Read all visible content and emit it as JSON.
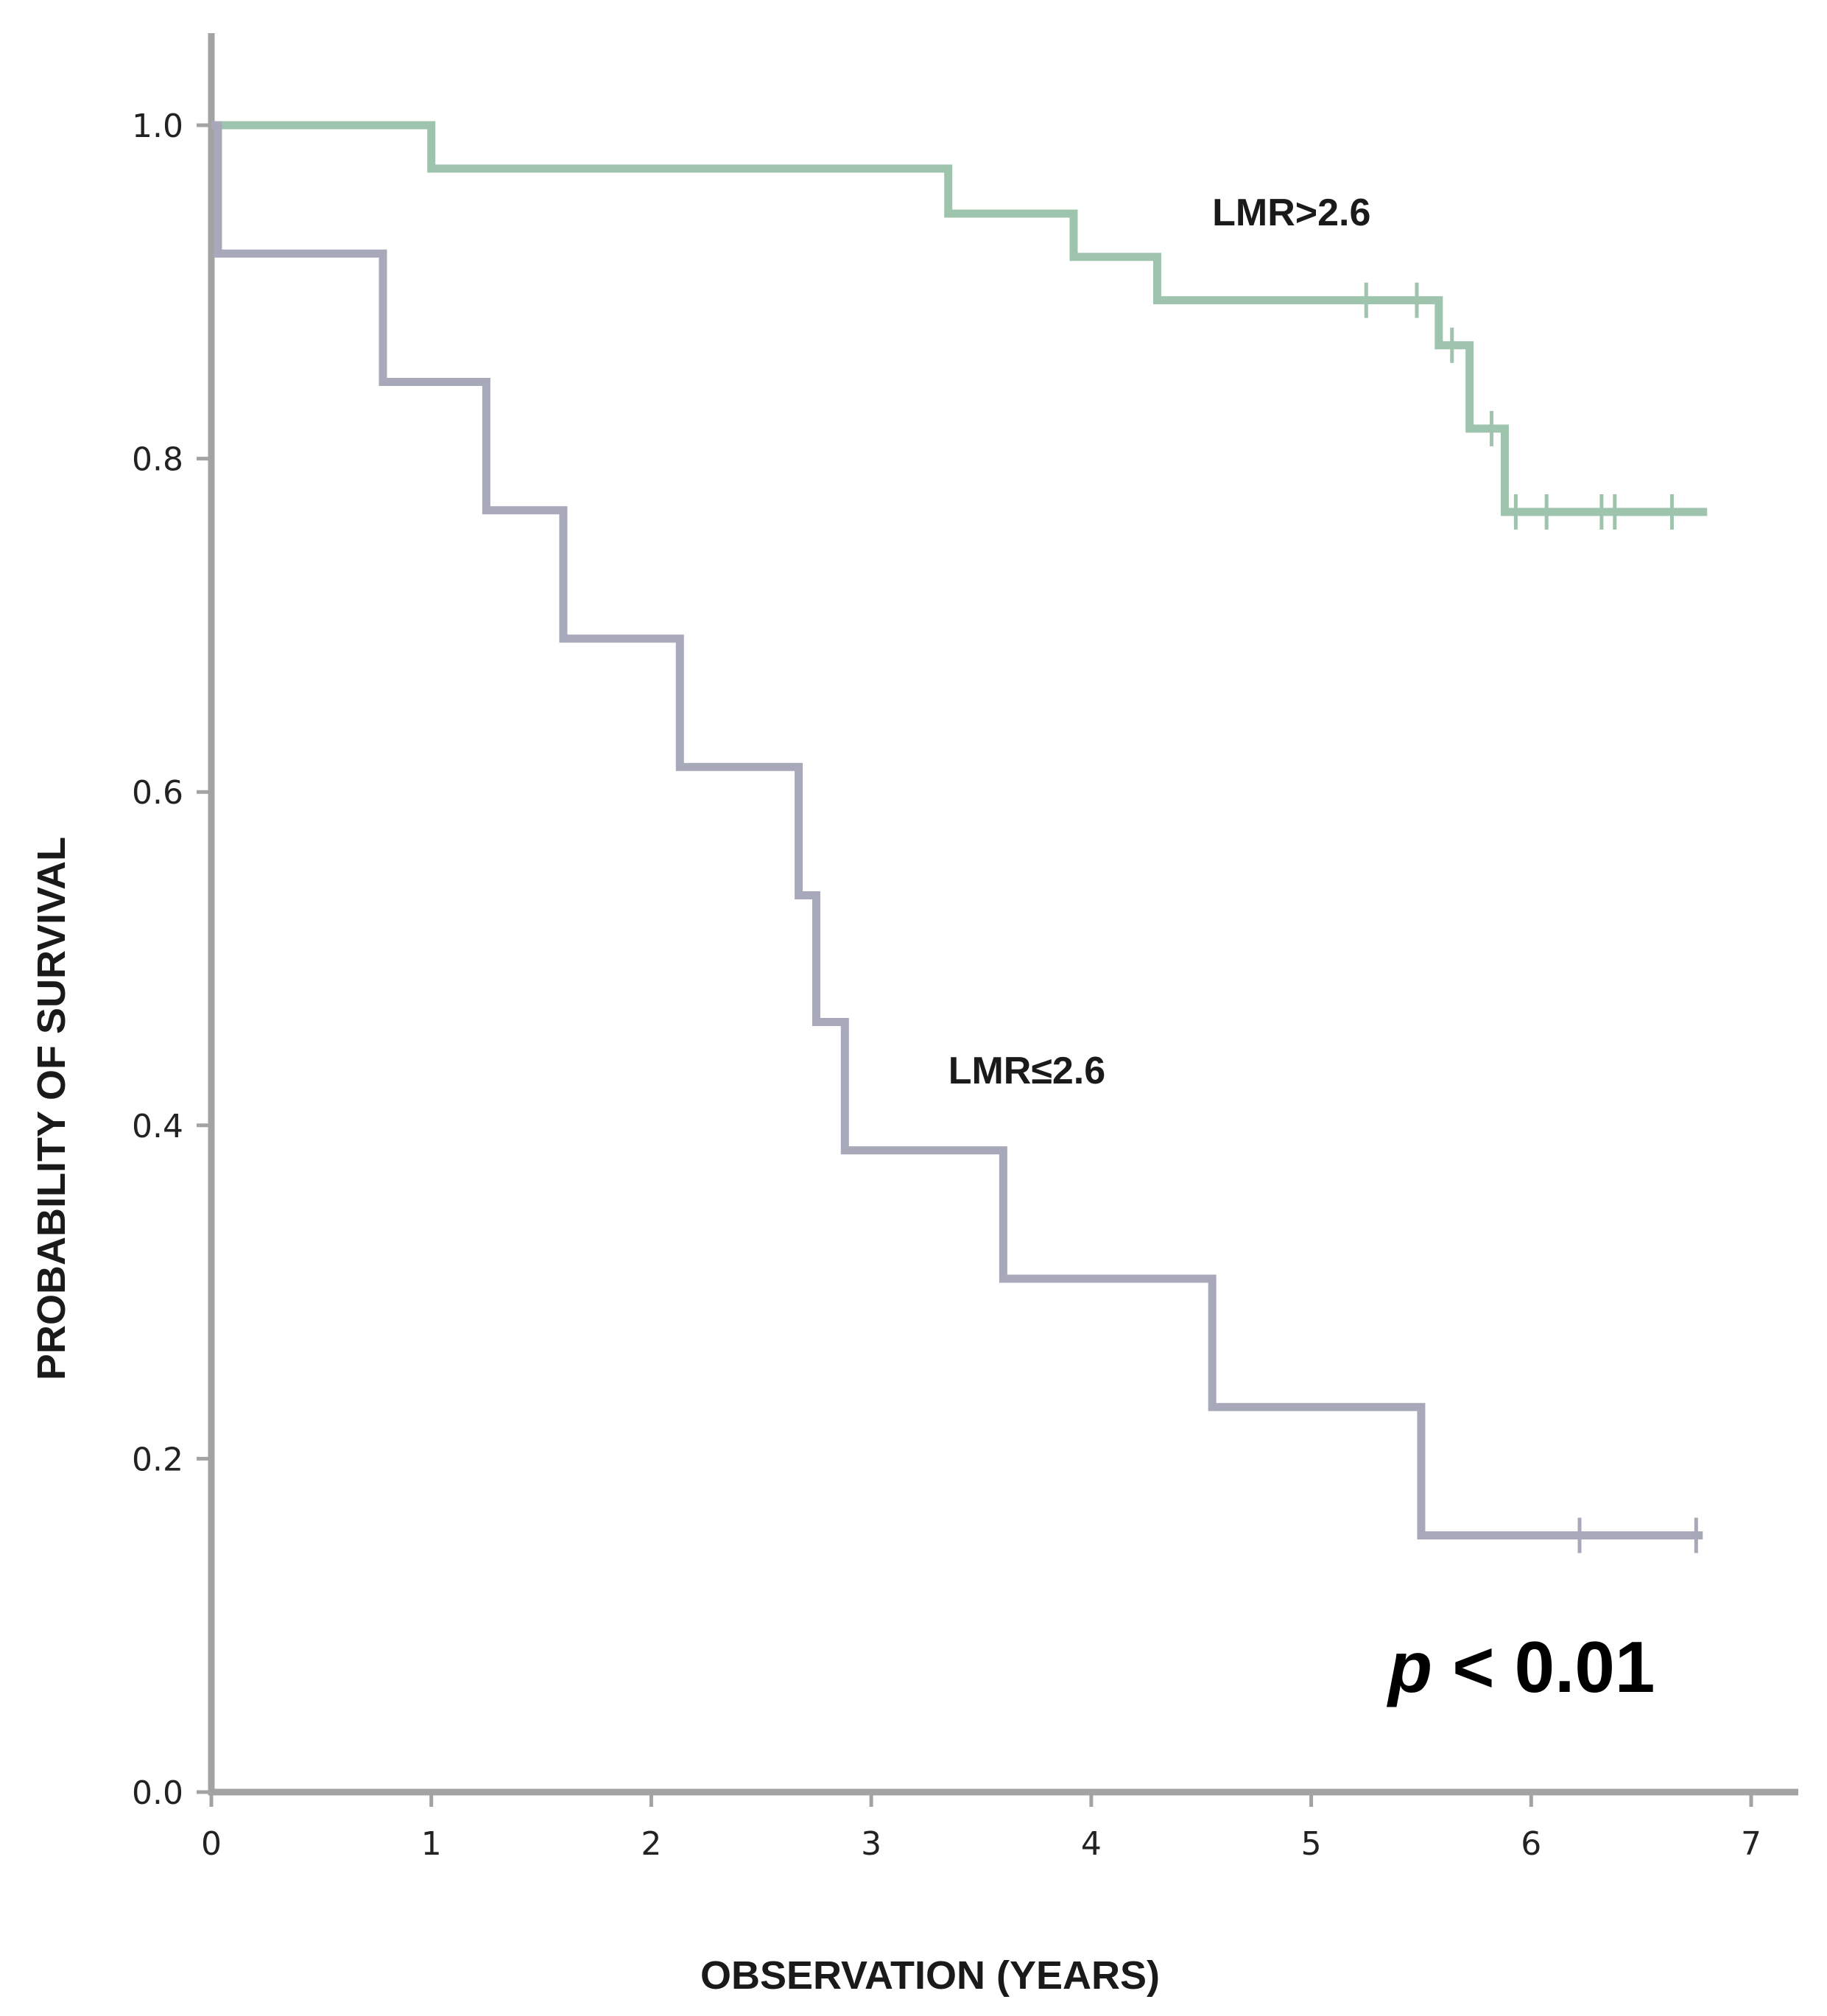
{
  "chart_data": {
    "type": "line",
    "subtype": "kaplan-meier-step",
    "xlabel": "OBSERVATION (YEARS)",
    "ylabel": "PROBABILITY OF SURVIVAL",
    "xlim": [
      0,
      7
    ],
    "ylim": [
      0,
      1
    ],
    "x_ticks": [
      "0",
      "1",
      "2",
      "3",
      "4",
      "5",
      "6",
      "7"
    ],
    "y_ticks": [
      "0.0",
      "0.2",
      "0.4",
      "0.6",
      "0.8",
      "1.0"
    ],
    "grid": false,
    "series": [
      {
        "name": "LMR>2.6",
        "color": "#9fc4ad",
        "steps": [
          [
            0,
            1.0
          ],
          [
            1.0,
            0.974
          ],
          [
            3.35,
            0.947
          ],
          [
            3.92,
            0.921
          ],
          [
            4.3,
            0.895
          ],
          [
            5.58,
            0.868
          ],
          [
            5.72,
            0.818
          ],
          [
            5.88,
            0.768
          ]
        ],
        "end_x": 6.8,
        "censored": [
          [
            5.25,
            0.895
          ],
          [
            5.48,
            0.895
          ],
          [
            5.64,
            0.868
          ],
          [
            5.82,
            0.818
          ],
          [
            5.93,
            0.768
          ],
          [
            6.07,
            0.768
          ],
          [
            6.32,
            0.768
          ],
          [
            6.38,
            0.768
          ],
          [
            6.64,
            0.768
          ]
        ]
      },
      {
        "name": "LMR≤2.6",
        "color": "#a7a8ba",
        "steps": [
          [
            0,
            1.0
          ],
          [
            0.03,
            0.923
          ],
          [
            0.78,
            0.846
          ],
          [
            1.25,
            0.769
          ],
          [
            1.6,
            0.692
          ],
          [
            2.13,
            0.615
          ],
          [
            2.67,
            0.538
          ],
          [
            2.75,
            0.462
          ],
          [
            2.88,
            0.385
          ],
          [
            3.6,
            0.308
          ],
          [
            4.55,
            0.231
          ],
          [
            5.5,
            0.154
          ]
        ],
        "end_x": 6.78,
        "censored": [
          [
            6.22,
            0.154
          ],
          [
            6.75,
            0.154
          ]
        ]
      }
    ],
    "annotations": [
      {
        "text_italic": "p",
        "text": " < 0.01",
        "x": 5.35,
        "y": 0.06
      }
    ]
  }
}
